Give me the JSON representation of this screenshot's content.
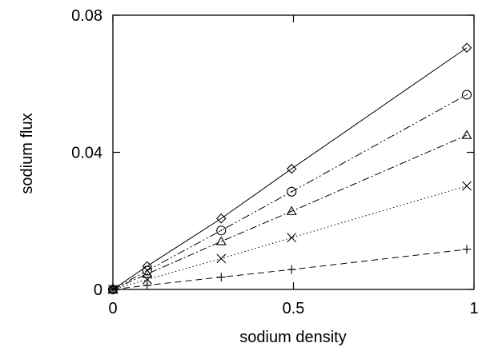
{
  "chart_data": {
    "type": "line",
    "title": "",
    "xlabel": "sodium density",
    "ylabel": "sodium flux",
    "xlim": [
      0,
      1
    ],
    "ylim": [
      0,
      0.08
    ],
    "x_ticks": [
      {
        "value": 0,
        "label": "0"
      },
      {
        "value": 0.5,
        "label": "0.5"
      },
      {
        "value": 1,
        "label": "1"
      }
    ],
    "y_ticks": [
      {
        "value": 0,
        "label": "0"
      },
      {
        "value": 0.04,
        "label": "0.04"
      },
      {
        "value": 0.08,
        "label": "0.08"
      }
    ],
    "grid": false,
    "legend": "none",
    "series": [
      {
        "marker": "diamond",
        "line_style": "solid",
        "x": [
          0,
          0.095,
          0.3,
          0.495,
          0.98
        ],
        "y": [
          0,
          0.0068,
          0.0207,
          0.0352,
          0.0705
        ]
      },
      {
        "marker": "circle",
        "line_style": "dash-dot-dot",
        "x": [
          0,
          0.095,
          0.3,
          0.495,
          0.98
        ],
        "y": [
          0,
          0.0055,
          0.0172,
          0.0285,
          0.0568
        ]
      },
      {
        "marker": "triangle",
        "line_style": "dash-dot",
        "x": [
          0,
          0.095,
          0.3,
          0.495,
          0.98
        ],
        "y": [
          0,
          0.0045,
          0.014,
          0.0228,
          0.045
        ]
      },
      {
        "marker": "cross",
        "line_style": "dotted",
        "x": [
          0,
          0.095,
          0.3,
          0.495,
          0.98
        ],
        "y": [
          0,
          0.0029,
          0.009,
          0.0151,
          0.0302
        ]
      },
      {
        "marker": "plus",
        "line_style": "dashed",
        "x": [
          0,
          0.095,
          0.3,
          0.495,
          0.98
        ],
        "y": [
          0,
          0.0012,
          0.0036,
          0.0058,
          0.0117
        ]
      }
    ]
  }
}
